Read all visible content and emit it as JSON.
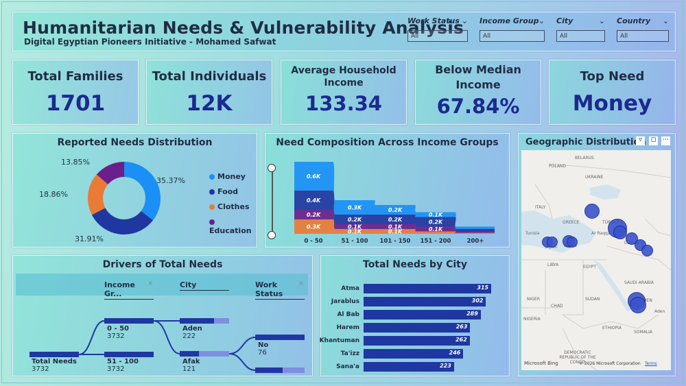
{
  "header": {
    "title": "Humanitarian Needs & Vulnerability Analysis",
    "subtitle": "Digital Egyptian Pioneers Initiative - Mohamed Safwat"
  },
  "slicers": [
    {
      "label": "Work Status",
      "value": "All"
    },
    {
      "label": "Income Group",
      "value": "All"
    },
    {
      "label": "City",
      "value": "All"
    },
    {
      "label": "Country",
      "value": "All"
    }
  ],
  "kpis": [
    {
      "label": "Total Families",
      "value": "1701"
    },
    {
      "label": "Total Individuals",
      "value": "12K"
    },
    {
      "label_line1": "Average Household",
      "label_line2": "Income",
      "value": "133.34"
    },
    {
      "label_line1": "Below Median",
      "label_line2": "Income",
      "value": "67.84%"
    },
    {
      "label": "Top Need",
      "value": "Money"
    }
  ],
  "donut": {
    "title": "Reported Needs Distribution",
    "legend": [
      "Money",
      "Food",
      "Clothes",
      "Education"
    ],
    "pct_labels": [
      "35.37%",
      "31.91%",
      "18.86%",
      "13.85%"
    ]
  },
  "ribbon": {
    "title": "Need Composition Across Income Groups",
    "labels": {
      "g1": [
        "0.6K",
        "0.4K",
        "0.2K",
        "0.3K"
      ],
      "g2": [
        "0.3K",
        "0.2K",
        "0.1K",
        "0.1K"
      ],
      "g3": [
        "0.2K",
        "0.2K",
        "0.1K",
        "0.1K"
      ],
      "g4": [
        "0.1K",
        "0.2K",
        "0.1K"
      ]
    }
  },
  "map": {
    "title": "Geographic Distribution o",
    "attribution": "© 2026 Microsoft Corporation",
    "terms": "Terms",
    "bing": "Microsoft Bing",
    "places": [
      "BELARUS",
      "POLAND",
      "UKRAINE",
      "ITALY",
      "GREECE",
      "TÜRKIYE",
      "LIBYA",
      "EGYPT",
      "SAUDI ARABIA",
      "NIGER",
      "CHAD",
      "SUDAN",
      "NIGERIA",
      "YEMEN",
      "ETHIOPIA",
      "SOMALIA",
      "DEMOCRATIC REPUBLIC OF THE CONGO",
      "Tunisia",
      "Tripoli",
      "Bayda",
      "Ar Raqqa",
      "Damascus",
      "Aden"
    ]
  },
  "decomp": {
    "title": "Drivers of Total Needs",
    "headers": [
      "Income Gr...",
      "City",
      "Work Status"
    ],
    "root": {
      "label": "Total Needs",
      "value": "3732"
    },
    "level1": [
      {
        "label": "0 - 50",
        "value": "3732"
      },
      {
        "label": "51 - 100",
        "value": "3732"
      }
    ],
    "level2": [
      {
        "label": "Aden",
        "value": "222"
      },
      {
        "label": "Afak",
        "value": "121"
      }
    ],
    "level3": [
      {
        "label": "No",
        "value": "76"
      }
    ]
  },
  "chart_data": [
    {
      "type": "pie",
      "title": "Reported Needs Distribution",
      "categories": [
        "Money",
        "Food",
        "Clothes",
        "Education"
      ],
      "values": [
        35.37,
        31.91,
        18.86,
        13.85
      ],
      "colors": [
        "#1a8ff5",
        "#1f37a0",
        "#ea7a35",
        "#6b1f8a"
      ],
      "legend": "right"
    },
    {
      "type": "area",
      "title": "Need Composition Across Income Groups",
      "categories": [
        "0 - 50",
        "51 - 100",
        "101 - 150",
        "151 - 200",
        "200+"
      ],
      "series": [
        {
          "name": "Education",
          "values": [
            0.3,
            0.1,
            0.1,
            0.05,
            0.02
          ],
          "color": "#ea7a35"
        },
        {
          "name": "Clothes",
          "values": [
            0.2,
            0.1,
            0.1,
            0.1,
            0.03
          ],
          "color": "#6b1f8a"
        },
        {
          "name": "Food",
          "values": [
            0.4,
            0.2,
            0.2,
            0.2,
            0.05
          ],
          "color": "#1f37a0"
        },
        {
          "name": "Money",
          "values": [
            0.6,
            0.3,
            0.2,
            0.1,
            0.05
          ],
          "color": "#1a8ff5"
        }
      ]
    },
    {
      "type": "bar",
      "title": "Total Needs by City",
      "categories": [
        "Atma",
        "Jarablus",
        "Al Bab",
        "Harem",
        "Khantuman",
        "Ta'izz",
        "Sana'a"
      ],
      "values": [
        315,
        302,
        289,
        263,
        262,
        246,
        223
      ],
      "color": "#1f37a0"
    }
  ]
}
